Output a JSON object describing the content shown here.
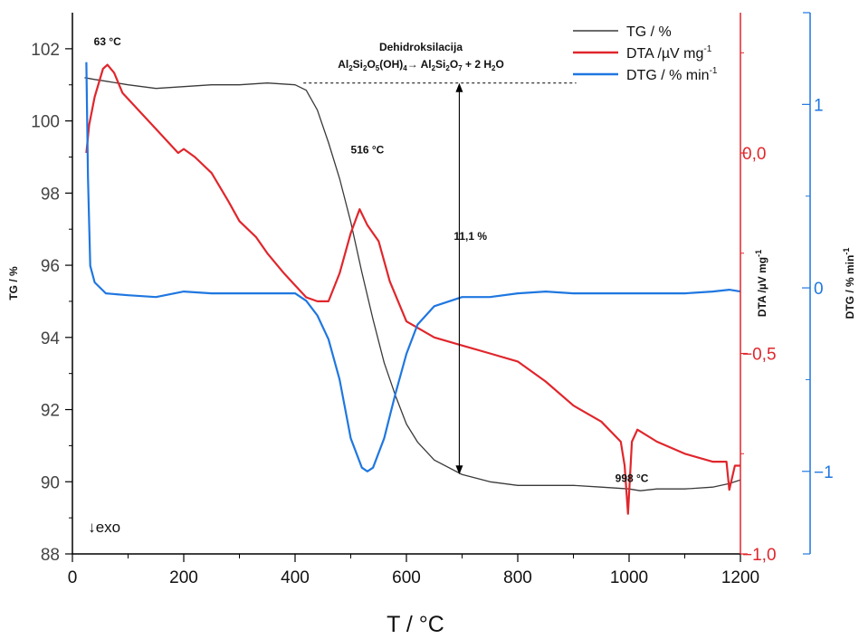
{
  "chart_data": {
    "type": "line",
    "xlabel": "T / °C",
    "xlim": [
      0,
      1200
    ],
    "x_ticks": [
      "0",
      "200",
      "400",
      "600",
      "800",
      "1000",
      "1200"
    ],
    "grid": false,
    "legend": "top-right",
    "axes": {
      "tg": {
        "label": "TG / %",
        "lim": [
          88,
          103
        ],
        "ticks": [
          "88",
          "90",
          "92",
          "94",
          "96",
          "98",
          "100",
          "102"
        ],
        "color": "#000000"
      },
      "dta": {
        "label_main": "DTA /µV mg",
        "label_sup": "-1",
        "lim": [
          -1.0,
          0.35
        ],
        "ticks": [
          "−1,0",
          "−0,5",
          "0,0"
        ],
        "color": "#e0262c"
      },
      "dtg": {
        "label_main": "DTG / % min",
        "label_sup": "-1",
        "lim": [
          -1.45,
          1.5
        ],
        "ticks": [
          "−1",
          "0",
          "1"
        ],
        "color": "#1f77e0"
      }
    },
    "series": [
      {
        "name": "TG / %",
        "axis": "tg",
        "color": "#3a3a3a",
        "x": [
          22,
          40,
          60,
          100,
          150,
          200,
          250,
          300,
          350,
          400,
          420,
          440,
          460,
          480,
          500,
          520,
          540,
          560,
          580,
          600,
          620,
          650,
          700,
          750,
          800,
          850,
          900,
          950,
          1000,
          1020,
          1050,
          1100,
          1150,
          1180,
          1200
        ],
        "values": [
          101.2,
          101.15,
          101.1,
          101.0,
          100.9,
          100.95,
          101.0,
          101.0,
          101.05,
          101.0,
          100.85,
          100.3,
          99.4,
          98.4,
          97.2,
          95.8,
          94.5,
          93.3,
          92.4,
          91.6,
          91.1,
          90.6,
          90.2,
          90.0,
          89.9,
          89.9,
          89.9,
          89.85,
          89.8,
          89.75,
          89.8,
          89.8,
          89.85,
          89.95,
          90.05
        ]
      },
      {
        "name": "DTA /µV mg",
        "name_sup": "-1",
        "axis": "dta",
        "color": "#e0262c",
        "x": [
          25,
          30,
          40,
          55,
          63,
          75,
          90,
          110,
          150,
          190,
          200,
          220,
          250,
          280,
          300,
          330,
          350,
          380,
          400,
          420,
          440,
          460,
          480,
          500,
          516,
          530,
          550,
          570,
          600,
          650,
          700,
          750,
          800,
          850,
          900,
          950,
          985,
          992,
          998,
          1005,
          1015,
          1050,
          1100,
          1150,
          1175,
          1180,
          1190,
          1200
        ],
        "values": [
          0.0,
          0.07,
          0.14,
          0.21,
          0.22,
          0.2,
          0.15,
          0.12,
          0.06,
          0.0,
          0.01,
          -0.01,
          -0.05,
          -0.12,
          -0.17,
          -0.21,
          -0.25,
          -0.3,
          -0.33,
          -0.36,
          -0.37,
          -0.37,
          -0.3,
          -0.2,
          -0.14,
          -0.18,
          -0.22,
          -0.32,
          -0.42,
          -0.46,
          -0.48,
          -0.5,
          -0.52,
          -0.57,
          -0.63,
          -0.67,
          -0.72,
          -0.78,
          -0.9,
          -0.72,
          -0.69,
          -0.72,
          -0.75,
          -0.77,
          -0.77,
          -0.84,
          -0.78,
          -0.78
        ]
      },
      {
        "name": "DTG / % min",
        "name_sup": "-1",
        "axis": "dtg",
        "color": "#1f77e0",
        "x": [
          25,
          28,
          32,
          40,
          60,
          100,
          150,
          200,
          250,
          300,
          350,
          400,
          420,
          440,
          460,
          480,
          500,
          520,
          530,
          540,
          560,
          580,
          600,
          620,
          650,
          700,
          750,
          800,
          850,
          900,
          950,
          1000,
          1050,
          1100,
          1150,
          1180,
          1200
        ],
        "values": [
          1.23,
          0.6,
          0.12,
          0.03,
          -0.03,
          -0.04,
          -0.05,
          -0.02,
          -0.03,
          -0.03,
          -0.03,
          -0.03,
          -0.07,
          -0.15,
          -0.28,
          -0.5,
          -0.82,
          -0.98,
          -1.0,
          -0.98,
          -0.82,
          -0.58,
          -0.36,
          -0.2,
          -0.1,
          -0.05,
          -0.05,
          -0.03,
          -0.02,
          -0.03,
          -0.03,
          -0.03,
          -0.03,
          -0.03,
          -0.02,
          -0.01,
          -0.02
        ]
      }
    ],
    "annotations": [
      {
        "id": "peak63",
        "text": "63 °C",
        "x": 63,
        "y": 102.1,
        "axis": "tg"
      },
      {
        "id": "peak516",
        "text": "516 °C",
        "x": 530,
        "y": 99.1,
        "axis": "tg"
      },
      {
        "id": "peak998",
        "text": "998 °C",
        "x": 1005,
        "y": 90.0,
        "axis": "tg"
      },
      {
        "id": "loss",
        "text": "11,1 %",
        "x": 715,
        "y": 96.7,
        "axis": "tg"
      },
      {
        "id": "exo",
        "text": "↓exo",
        "x": 28,
        "y": 88.6,
        "axis": "tg"
      }
    ],
    "reaction": {
      "title": "Dehidroksilacija",
      "formula": [
        "Al",
        "2",
        "Si",
        "2",
        "O",
        "5",
        "(OH)",
        "4",
        "→ Al",
        "2",
        "Si",
        "2",
        "O",
        "7",
        " + 2 H",
        "2",
        "O"
      ]
    },
    "guides": {
      "dashed_level": 101.05,
      "dashed_from": 415,
      "dashed_to": 905,
      "arrow_x": 695,
      "arrow_top": 101.05,
      "arrow_bottom": 90.2
    }
  }
}
